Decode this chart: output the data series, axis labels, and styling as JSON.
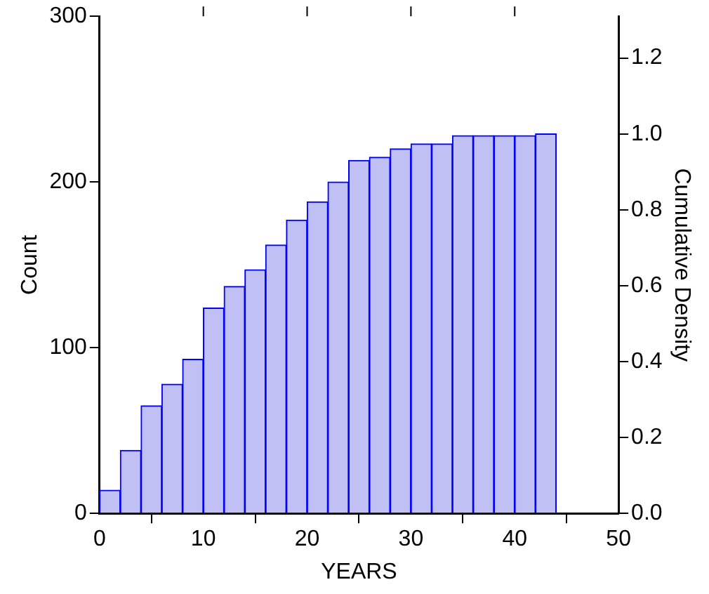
{
  "chart_data": {
    "type": "histogram",
    "xlabel": "YEARS",
    "ylabel": "Count",
    "y2label": "Cumulative Density",
    "bins": [
      0,
      2,
      4,
      6,
      8,
      10,
      12,
      14,
      16,
      18,
      20,
      22,
      24,
      26,
      28,
      30,
      32,
      34,
      36,
      38,
      40,
      42,
      44
    ],
    "values": [
      14,
      38,
      65,
      78,
      93,
      124,
      137,
      147,
      162,
      177,
      188,
      200,
      213,
      215,
      220,
      223,
      223,
      228,
      228,
      228,
      228,
      229
    ],
    "color": "#c0c0f4",
    "xlim": [
      0,
      50
    ],
    "xticks": [
      0,
      10,
      20,
      30,
      40,
      50
    ],
    "ylim": [
      0,
      300
    ],
    "yticks": [
      0,
      100,
      200,
      300
    ],
    "y2lim": [
      0,
      1.31
    ],
    "y2ticks": [
      {
        "value": 0,
        "label": "0.0"
      },
      {
        "value": 0.2,
        "label": "0.2"
      },
      {
        "value": 0.4,
        "label": "0.4"
      },
      {
        "value": 0.6,
        "label": "0.6"
      },
      {
        "value": 0.8,
        "label": "0.8"
      },
      {
        "value": 1.0,
        "label": "1.0"
      },
      {
        "value": 1.2,
        "label": "1.2"
      }
    ],
    "grid": false,
    "legend": false
  }
}
